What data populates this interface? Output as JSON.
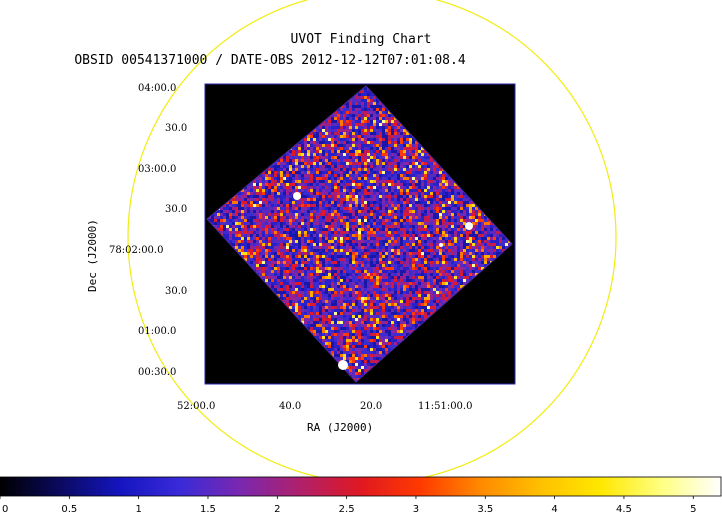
{
  "title_line1": "UVOT Finding Chart",
  "title_line2": "OBSID 00541371000 / DATE-OBS 2012-12-12T07:01:08.4",
  "colors": {
    "circle": "#f2ec10",
    "frame_bg": "#000000",
    "frame_border": "#2828a8",
    "colorbar": [
      "#000000",
      "#0a0a60",
      "#1515c0",
      "#3a2ad8",
      "#7a28b0",
      "#b0206a",
      "#e01822",
      "#ff3a00",
      "#ff8a00",
      "#ffc000",
      "#ffe800",
      "#ffff80",
      "#ffffff"
    ]
  },
  "chart_data": {
    "type": "heatmap",
    "title": "UVOT Finding Chart",
    "subtitle": "OBSID 00541371000 / DATE-OBS 2012-12-12T07:01:08.4",
    "xlabel": "RA (J2000)",
    "ylabel": "Dec (J2000)",
    "x_ticks": [
      "52:00.0",
      "40.0",
      "20.0",
      "11:51:00.0"
    ],
    "y_ticks": [
      "04:00.0",
      "30.0",
      "03:00.0",
      "30.0",
      "78:02:00.0",
      "30.0",
      "01:00.0",
      "00:30.0"
    ],
    "colorbar": {
      "range": [
        0,
        5.2
      ],
      "ticks": [
        "0",
        "0.5",
        "1",
        "1.5",
        "2",
        "2.5",
        "3",
        "3.5",
        "4",
        "4.5",
        "5"
      ]
    },
    "bright_sources": [
      {
        "ra": "11:51:40.9",
        "dec": "78:02:38"
      },
      {
        "ra": "11:51:07.5",
        "dec": "78:02:14"
      },
      {
        "ra": "11:51:27.6",
        "dec": "78:00:32"
      },
      {
        "ra": "11:51:12.0",
        "dec": "78:02:03"
      }
    ]
  }
}
